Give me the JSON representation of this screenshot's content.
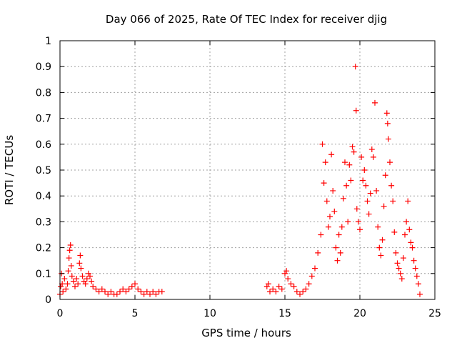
{
  "chart_data": {
    "type": "scatter",
    "title": "Day 066 of 2025, Rate Of TEC Index for receiver djig",
    "xlabel": "GPS time / hours",
    "ylabel": "ROTI / TECUs",
    "xlim": [
      0,
      25
    ],
    "ylim": [
      0,
      1
    ],
    "xticks": [
      "0",
      "5",
      "10",
      "15",
      "20",
      "25"
    ],
    "yticks": [
      "0",
      "0.1",
      "0.2",
      "0.3",
      "0.4",
      "0.5",
      "0.6",
      "0.7",
      "0.8",
      "0.9",
      "1"
    ],
    "grid": true,
    "marker": "+",
    "color": "#ff0000",
    "series": [
      {
        "points": [
          [
            0.0,
            0.02
          ],
          [
            0.05,
            0.05
          ],
          [
            0.1,
            0.1
          ],
          [
            0.15,
            0.06
          ],
          [
            0.2,
            0.03
          ],
          [
            0.3,
            0.08
          ],
          [
            0.4,
            0.04
          ],
          [
            0.5,
            0.06
          ],
          [
            0.55,
            0.11
          ],
          [
            0.6,
            0.16
          ],
          [
            0.65,
            0.19
          ],
          [
            0.7,
            0.21
          ],
          [
            0.75,
            0.13
          ],
          [
            0.8,
            0.09
          ],
          [
            0.9,
            0.07
          ],
          [
            1.0,
            0.05
          ],
          [
            1.1,
            0.08
          ],
          [
            1.2,
            0.06
          ],
          [
            1.3,
            0.14
          ],
          [
            1.35,
            0.17
          ],
          [
            1.4,
            0.12
          ],
          [
            1.5,
            0.09
          ],
          [
            1.6,
            0.07
          ],
          [
            1.7,
            0.06
          ],
          [
            1.8,
            0.08
          ],
          [
            1.9,
            0.1
          ],
          [
            2.0,
            0.09
          ],
          [
            2.1,
            0.07
          ],
          [
            2.2,
            0.05
          ],
          [
            2.4,
            0.04
          ],
          [
            2.6,
            0.03
          ],
          [
            2.8,
            0.04
          ],
          [
            3.0,
            0.03
          ],
          [
            3.2,
            0.02
          ],
          [
            3.4,
            0.03
          ],
          [
            3.6,
            0.02
          ],
          [
            3.8,
            0.02
          ],
          [
            4.0,
            0.03
          ],
          [
            4.2,
            0.04
          ],
          [
            4.4,
            0.03
          ],
          [
            4.6,
            0.04
          ],
          [
            4.8,
            0.05
          ],
          [
            5.0,
            0.06
          ],
          [
            5.2,
            0.04
          ],
          [
            5.4,
            0.03
          ],
          [
            5.6,
            0.02
          ],
          [
            5.8,
            0.03
          ],
          [
            6.0,
            0.02
          ],
          [
            6.2,
            0.03
          ],
          [
            6.4,
            0.02
          ],
          [
            6.6,
            0.03
          ],
          [
            6.8,
            0.03
          ],
          [
            13.8,
            0.05
          ],
          [
            13.9,
            0.06
          ],
          [
            14.0,
            0.03
          ],
          [
            14.2,
            0.04
          ],
          [
            14.4,
            0.03
          ],
          [
            14.6,
            0.05
          ],
          [
            14.8,
            0.04
          ],
          [
            15.0,
            0.1
          ],
          [
            15.1,
            0.11
          ],
          [
            15.2,
            0.08
          ],
          [
            15.4,
            0.06
          ],
          [
            15.6,
            0.05
          ],
          [
            15.8,
            0.03
          ],
          [
            16.0,
            0.02
          ],
          [
            16.2,
            0.03
          ],
          [
            16.4,
            0.04
          ],
          [
            16.6,
            0.06
          ],
          [
            16.8,
            0.09
          ],
          [
            17.0,
            0.12
          ],
          [
            17.2,
            0.18
          ],
          [
            17.4,
            0.25
          ],
          [
            17.5,
            0.6
          ],
          [
            17.6,
            0.45
          ],
          [
            17.7,
            0.53
          ],
          [
            17.8,
            0.38
          ],
          [
            17.9,
            0.28
          ],
          [
            18.0,
            0.32
          ],
          [
            18.1,
            0.56
          ],
          [
            18.2,
            0.42
          ],
          [
            18.3,
            0.34
          ],
          [
            18.4,
            0.2
          ],
          [
            18.5,
            0.15
          ],
          [
            18.6,
            0.25
          ],
          [
            18.7,
            0.18
          ],
          [
            18.8,
            0.28
          ],
          [
            18.9,
            0.39
          ],
          [
            19.0,
            0.53
          ],
          [
            19.1,
            0.44
          ],
          [
            19.2,
            0.3
          ],
          [
            19.3,
            0.52
          ],
          [
            19.4,
            0.46
          ],
          [
            19.5,
            0.59
          ],
          [
            19.6,
            0.57
          ],
          [
            19.7,
            0.9
          ],
          [
            19.75,
            0.73
          ],
          [
            19.8,
            0.35
          ],
          [
            19.9,
            0.3
          ],
          [
            20.0,
            0.27
          ],
          [
            20.1,
            0.55
          ],
          [
            20.2,
            0.46
          ],
          [
            20.3,
            0.5
          ],
          [
            20.4,
            0.44
          ],
          [
            20.5,
            0.38
          ],
          [
            20.6,
            0.33
          ],
          [
            20.7,
            0.41
          ],
          [
            20.8,
            0.58
          ],
          [
            20.9,
            0.55
          ],
          [
            21.0,
            0.76
          ],
          [
            21.1,
            0.42
          ],
          [
            21.2,
            0.28
          ],
          [
            21.3,
            0.2
          ],
          [
            21.4,
            0.17
          ],
          [
            21.5,
            0.23
          ],
          [
            21.6,
            0.36
          ],
          [
            21.7,
            0.48
          ],
          [
            21.8,
            0.72
          ],
          [
            21.85,
            0.68
          ],
          [
            21.9,
            0.62
          ],
          [
            22.0,
            0.53
          ],
          [
            22.1,
            0.44
          ],
          [
            22.2,
            0.38
          ],
          [
            22.3,
            0.26
          ],
          [
            22.4,
            0.18
          ],
          [
            22.5,
            0.14
          ],
          [
            22.6,
            0.12
          ],
          [
            22.7,
            0.1
          ],
          [
            22.8,
            0.08
          ],
          [
            22.9,
            0.16
          ],
          [
            23.0,
            0.25
          ],
          [
            23.1,
            0.3
          ],
          [
            23.2,
            0.38
          ],
          [
            23.3,
            0.27
          ],
          [
            23.4,
            0.22
          ],
          [
            23.5,
            0.2
          ],
          [
            23.6,
            0.15
          ],
          [
            23.7,
            0.12
          ],
          [
            23.8,
            0.09
          ],
          [
            23.9,
            0.06
          ],
          [
            24.0,
            0.02
          ]
        ]
      }
    ]
  }
}
